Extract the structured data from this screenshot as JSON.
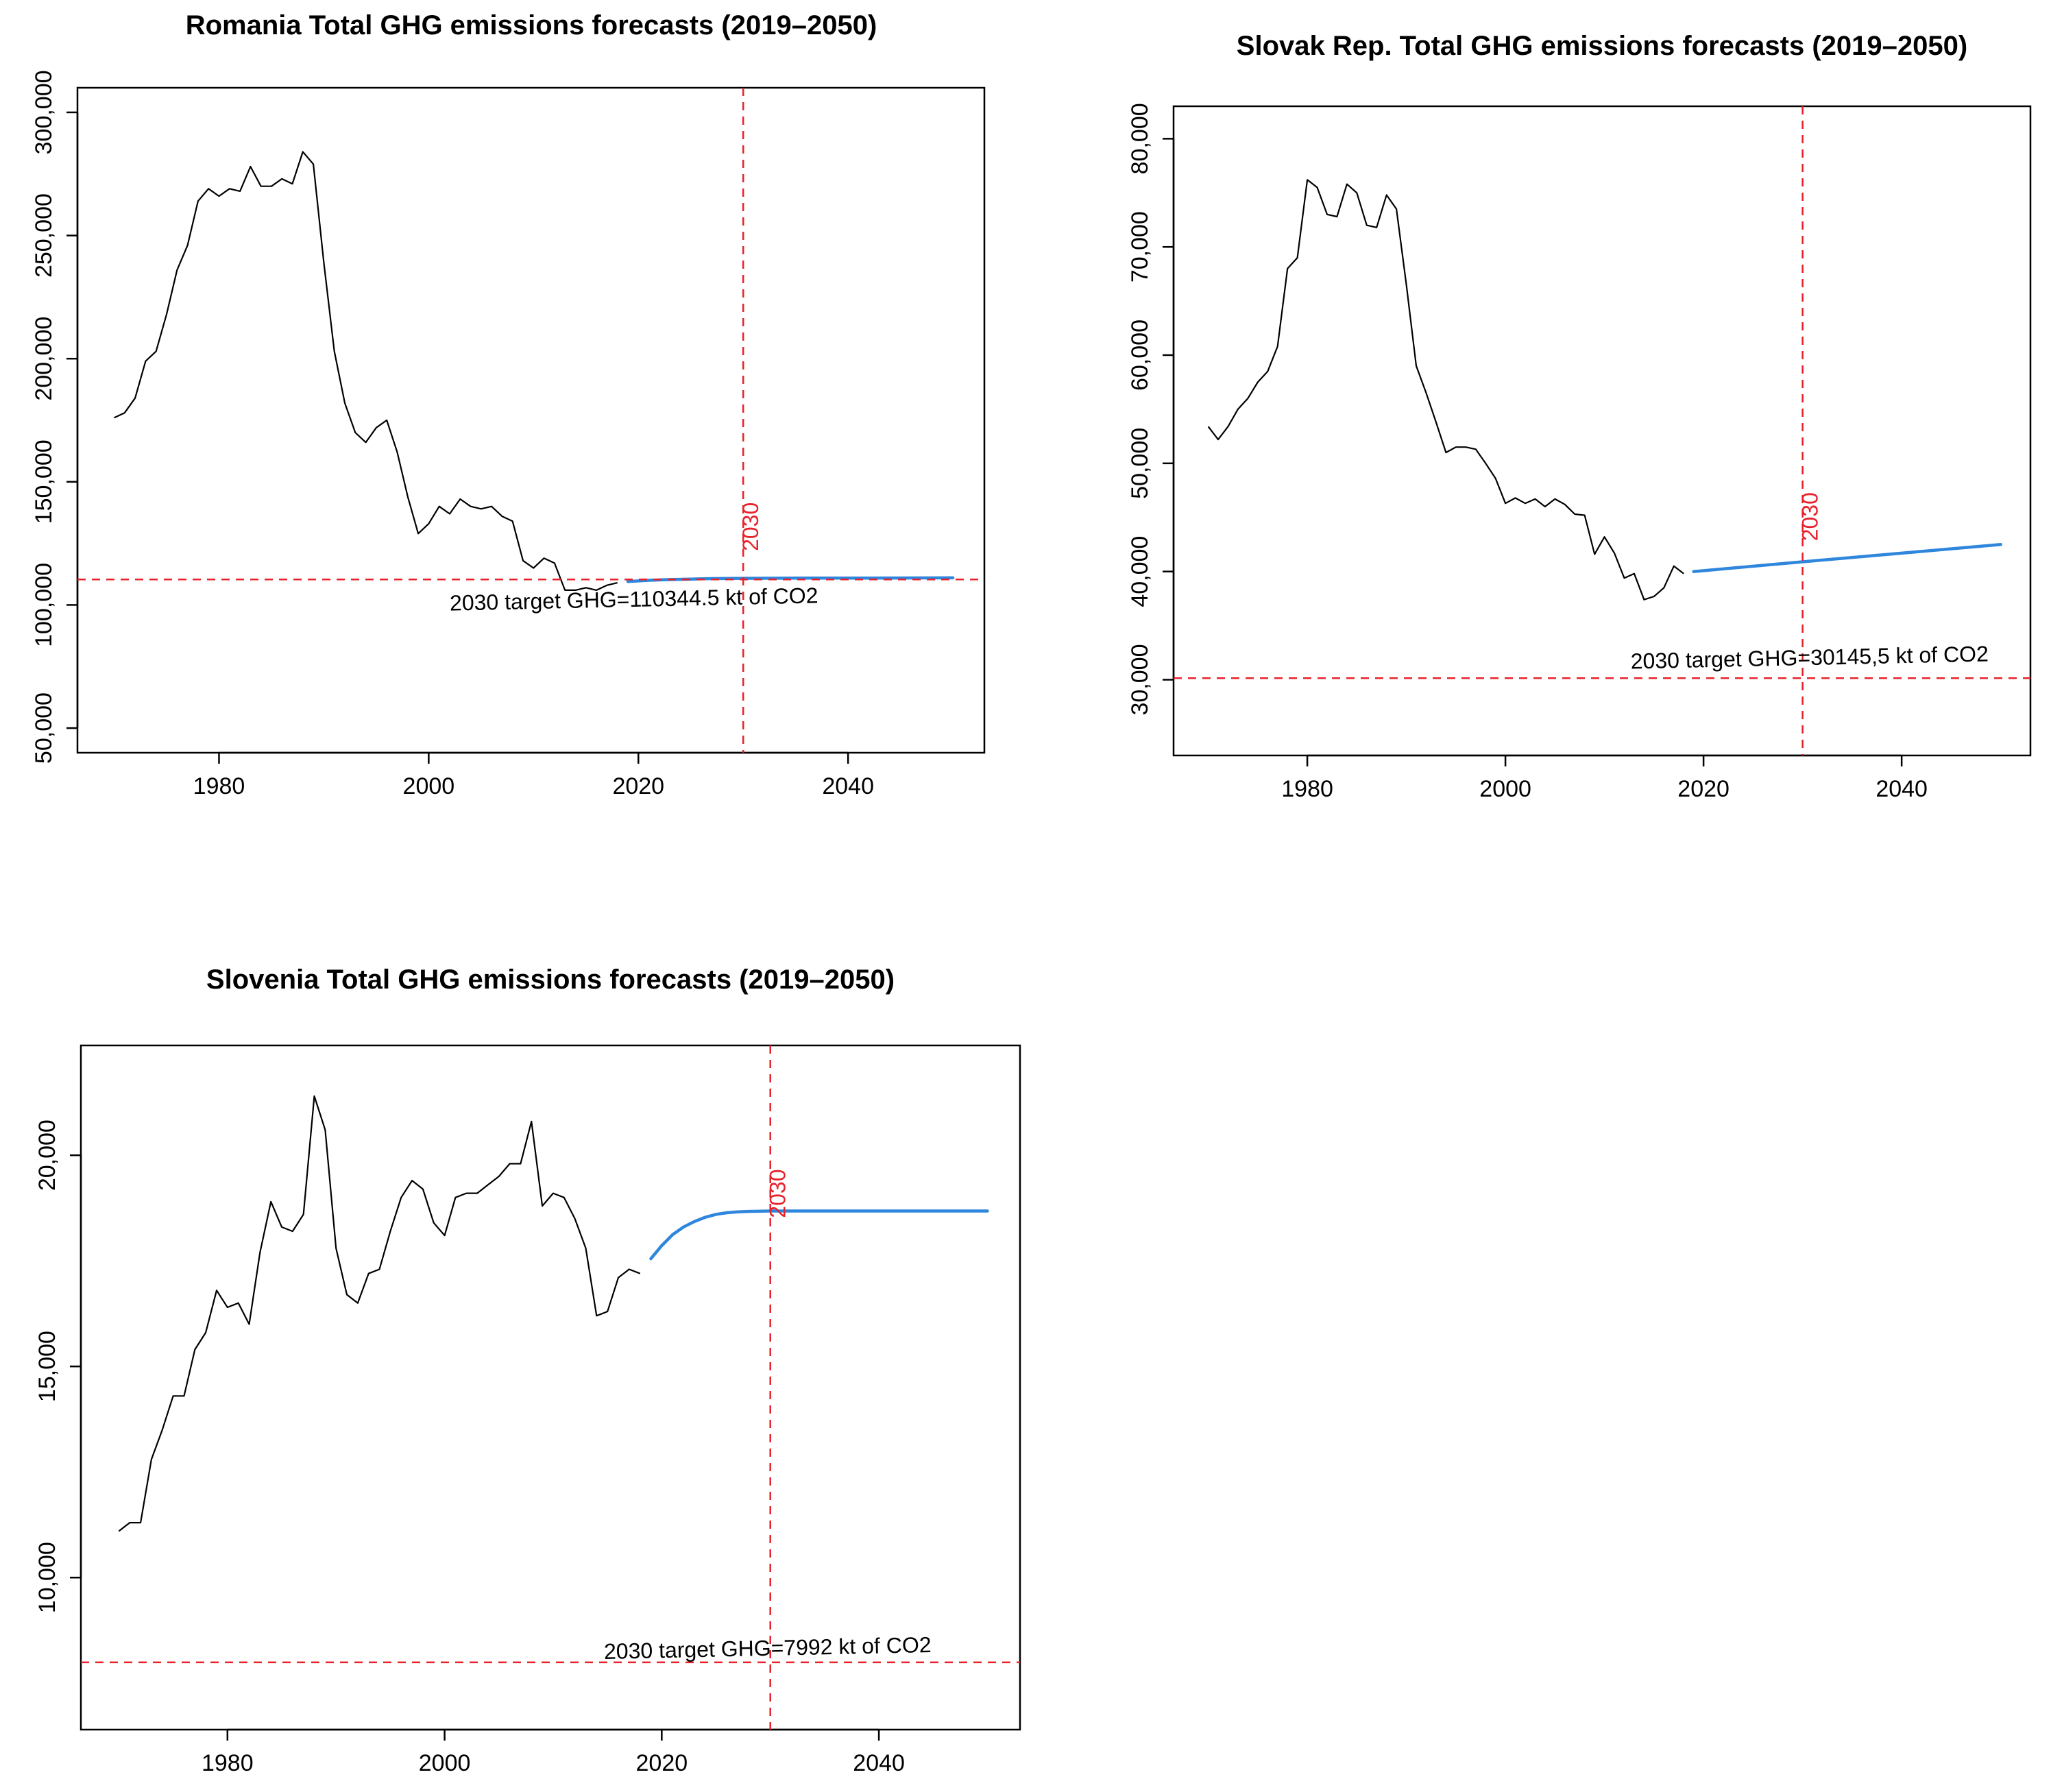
{
  "chart_data": [
    {
      "type": "line",
      "title": "Romania Total GHG emissions forecasts (2019–2050)",
      "xlabel": "",
      "ylabel": "",
      "xlim": [
        1966.5,
        2053
      ],
      "ylim": [
        40000,
        310000
      ],
      "x_ticks": [
        1980,
        2000,
        2020,
        2040
      ],
      "x_tick_labels": [
        "1980",
        "2000",
        "2020",
        "2040"
      ],
      "y_ticks": [
        50000,
        100000,
        150000,
        200000,
        250000,
        300000
      ],
      "y_tick_labels": [
        "50,000",
        "100,000",
        "150,000",
        "200,000",
        "250,000",
        "300,000"
      ],
      "series": [
        {
          "name": "historical",
          "color": "#000000",
          "x": [
            1970,
            1971,
            1972,
            1973,
            1974,
            1975,
            1976,
            1977,
            1978,
            1979,
            1980,
            1981,
            1982,
            1983,
            1984,
            1985,
            1986,
            1987,
            1988,
            1989,
            1990,
            1991,
            1992,
            1993,
            1994,
            1995,
            1996,
            1997,
            1998,
            1999,
            2000,
            2001,
            2002,
            2003,
            2004,
            2005,
            2006,
            2007,
            2008,
            2009,
            2010,
            2011,
            2012,
            2013,
            2014,
            2015,
            2016,
            2017,
            2018
          ],
          "values": [
            176000,
            178000,
            184000,
            199000,
            203000,
            218000,
            236000,
            246000,
            264000,
            269000,
            266000,
            269000,
            268000,
            278000,
            270000,
            270000,
            273000,
            271000,
            284000,
            279000,
            239000,
            203000,
            182000,
            170000,
            166000,
            172000,
            175000,
            162000,
            144000,
            129000,
            133000,
            140000,
            137000,
            143000,
            140000,
            139000,
            140000,
            136000,
            134000,
            118000,
            115000,
            119000,
            117000,
            106000,
            106000,
            107000,
            106000,
            108000,
            109000
          ]
        },
        {
          "name": "forecast",
          "color": "#2f86dd",
          "x": [
            2019,
            2021,
            2023,
            2025,
            2027,
            2030,
            2035,
            2040,
            2045,
            2050
          ],
          "values": [
            109500,
            110000,
            110300,
            110500,
            110700,
            110800,
            110900,
            110900,
            110950,
            111000
          ]
        }
      ],
      "reference_lines": {
        "vertical_x": 2030,
        "vertical_label": "2030",
        "horizontal_y": 110344.5,
        "target_label": "2030 target GHG=110344.5 kt of CO2"
      }
    },
    {
      "type": "line",
      "title": "Slovak Rep. Total GHG emissions forecasts (2019–2050)",
      "xlabel": "",
      "ylabel": "",
      "xlim": [
        1966.5,
        2053
      ],
      "ylim": [
        23000,
        83000
      ],
      "x_ticks": [
        1980,
        2000,
        2020,
        2040
      ],
      "x_tick_labels": [
        "1980",
        "2000",
        "2020",
        "2040"
      ],
      "y_ticks": [
        30000,
        40000,
        50000,
        60000,
        70000,
        80000
      ],
      "y_tick_labels": [
        "30,000",
        "40,000",
        "50,000",
        "60,000",
        "70,000",
        "80,000"
      ],
      "series": [
        {
          "name": "historical",
          "color": "#000000",
          "x": [
            1970,
            1971,
            1972,
            1973,
            1974,
            1975,
            1976,
            1977,
            1978,
            1979,
            1980,
            1981,
            1982,
            1983,
            1984,
            1985,
            1986,
            1987,
            1988,
            1989,
            1990,
            1991,
            1992,
            1993,
            1994,
            1995,
            1996,
            1997,
            1998,
            1999,
            2000,
            2001,
            2002,
            2003,
            2004,
            2005,
            2006,
            2007,
            2008,
            2009,
            2010,
            2011,
            2012,
            2013,
            2014,
            2015,
            2016,
            2017,
            2018
          ],
          "values": [
            53400,
            52200,
            53400,
            55000,
            56000,
            57500,
            58500,
            60800,
            68000,
            69000,
            76200,
            75500,
            73000,
            72800,
            75800,
            75000,
            72000,
            71800,
            74800,
            73500,
            66500,
            59000,
            56500,
            53800,
            51000,
            51500,
            51500,
            51300,
            50000,
            48600,
            46300,
            46800,
            46300,
            46700,
            46000,
            46700,
            46200,
            45300,
            45200,
            41600,
            43200,
            41700,
            39400,
            39800,
            37400,
            37700,
            38500,
            40500,
            39800
          ]
        },
        {
          "name": "forecast",
          "color": "#2f86dd",
          "x": [
            2019,
            2030,
            2040,
            2050
          ],
          "values": [
            40000,
            40900,
            41700,
            42500
          ]
        }
      ],
      "reference_lines": {
        "vertical_x": 2030,
        "vertical_label": "2030",
        "horizontal_y": 30145.5,
        "target_label": "2030 target GHG=30145,5 kt of CO2"
      }
    },
    {
      "type": "line",
      "title": "Slovenia Total GHG emissions forecasts (2019–2050)",
      "xlabel": "",
      "ylabel": "",
      "xlim": [
        1966.5,
        2053
      ],
      "ylim": [
        6400,
        22600
      ],
      "x_ticks": [
        1980,
        2000,
        2020,
        2040
      ],
      "x_tick_labels": [
        "1980",
        "2000",
        "2020",
        "2040"
      ],
      "y_ticks": [
        10000,
        15000,
        20000
      ],
      "y_tick_labels": [
        "10,000",
        "15,000",
        "20,000"
      ],
      "series": [
        {
          "name": "historical",
          "color": "#000000",
          "x": [
            1970,
            1971,
            1972,
            1973,
            1974,
            1975,
            1976,
            1977,
            1978,
            1979,
            1980,
            1981,
            1982,
            1983,
            1984,
            1985,
            1986,
            1987,
            1988,
            1989,
            1990,
            1991,
            1992,
            1993,
            1994,
            1995,
            1996,
            1997,
            1998,
            1999,
            2000,
            2001,
            2002,
            2003,
            2004,
            2005,
            2006,
            2007,
            2008,
            2009,
            2010,
            2011,
            2012,
            2013,
            2014,
            2015,
            2016,
            2017,
            2018
          ],
          "values": [
            11100,
            11300,
            11300,
            12800,
            13500,
            14300,
            14300,
            15400,
            15800,
            16800,
            16400,
            16500,
            16000,
            17700,
            18900,
            18300,
            18200,
            18600,
            21400,
            20600,
            17800,
            16700,
            16500,
            17200,
            17300,
            18200,
            19000,
            19400,
            19200,
            18400,
            18100,
            19000,
            19100,
            19100,
            19300,
            19500,
            19800,
            19800,
            20800,
            18800,
            19100,
            19000,
            18500,
            17800,
            16200,
            16300,
            17100,
            17300,
            17200
          ]
        },
        {
          "name": "forecast",
          "color": "#2f86dd",
          "x": [
            2019,
            2020,
            2021,
            2022,
            2023,
            2024,
            2025,
            2026,
            2027,
            2028,
            2030,
            2035,
            2040,
            2045,
            2050
          ],
          "values": [
            17550,
            17860,
            18120,
            18300,
            18430,
            18530,
            18600,
            18640,
            18660,
            18670,
            18680,
            18680,
            18680,
            18680,
            18680
          ]
        }
      ],
      "reference_lines": {
        "vertical_x": 2030,
        "vertical_label": "2030",
        "horizontal_y": 7992,
        "target_label": "2030 target GHG=7992 kt of CO2"
      }
    }
  ]
}
